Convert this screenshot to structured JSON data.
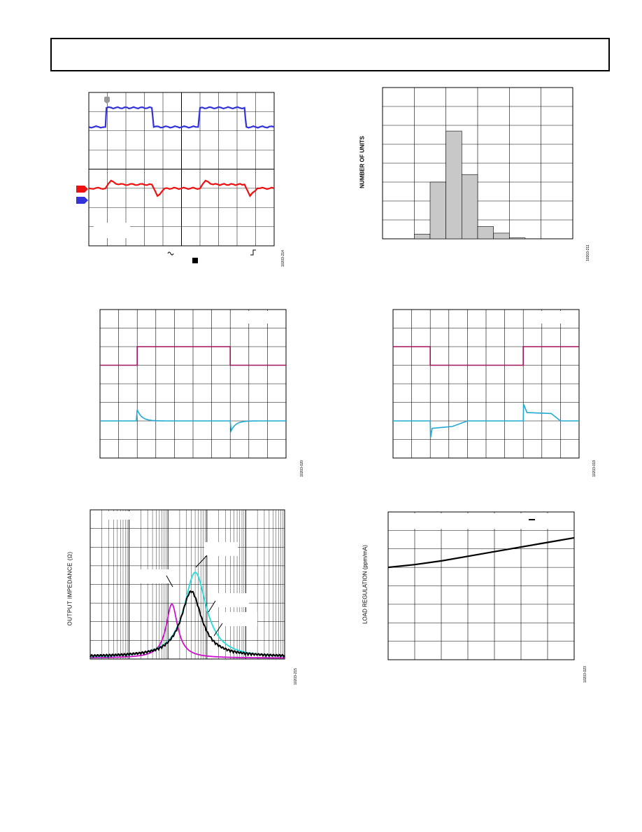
{
  "page": {
    "header_text": ""
  },
  "colors": {
    "blue": "#3333dd",
    "red": "#ee1111",
    "maroon": "#a0145a",
    "cyan": "#22aad4",
    "magenta": "#cc11cc",
    "aqua": "#22dddd",
    "gray_bar": "#c8c8c8"
  },
  "panels": {
    "scope": {
      "fig_id": "10203-214",
      "chart_data": {
        "type": "line",
        "divisions": {
          "x": 10,
          "y": 8
        },
        "series": [
          {
            "color": "blue",
            "points": [
              [
                0,
                6.2
              ],
              [
                0.9,
                6.2
              ],
              [
                0.95,
                7.2
              ],
              [
                3.4,
                7.2
              ],
              [
                3.5,
                6.2
              ],
              [
                5.9,
                6.2
              ],
              [
                6.0,
                7.2
              ],
              [
                8.4,
                7.2
              ],
              [
                8.5,
                6.2
              ],
              [
                10,
                6.2
              ]
            ]
          },
          {
            "color": "red",
            "points": [
              [
                0,
                3.0
              ],
              [
                0.9,
                3.0
              ],
              [
                1.2,
                3.4
              ],
              [
                1.6,
                3.2
              ],
              [
                3.4,
                3.2
              ],
              [
                3.7,
                2.6
              ],
              [
                4.1,
                3.0
              ],
              [
                6.0,
                3.0
              ],
              [
                6.3,
                3.4
              ],
              [
                6.7,
                3.2
              ],
              [
                8.4,
                3.2
              ],
              [
                8.7,
                2.6
              ],
              [
                9.1,
                3.0
              ],
              [
                10,
                3.0
              ]
            ]
          }
        ]
      }
    },
    "histogram": {
      "ylabel": "NUMBER OF UNITS",
      "fig_id": "10203-211",
      "chart_data": {
        "type": "bar",
        "grid": {
          "x": 6,
          "y": 8
        },
        "bins": {
          "start": 1,
          "width": 0.5
        },
        "values": [
          0.25,
          3,
          5.7,
          3.4,
          0.65,
          0.3,
          0.05
        ]
      }
    },
    "transient_up": {
      "fig_id": "10203-020",
      "chart_data": {
        "type": "line",
        "divisions": {
          "x": 10,
          "y": 8
        },
        "series": [
          {
            "color": "maroon",
            "kind": "step",
            "points": [
              [
                0,
                5.0
              ],
              [
                2,
                5.0
              ],
              [
                2,
                6.0
              ],
              [
                7,
                6.0
              ],
              [
                7,
                5.0
              ],
              [
                10,
                5.0
              ]
            ]
          },
          {
            "color": "cyan",
            "kind": "transient",
            "baseline": 2.0,
            "events": [
              [
                2,
                0.6
              ],
              [
                7,
                -0.65
              ]
            ]
          }
        ]
      }
    },
    "transient_down": {
      "fig_id": "10203-019",
      "chart_data": {
        "type": "line",
        "divisions": {
          "x": 10,
          "y": 8
        },
        "series": [
          {
            "color": "maroon",
            "kind": "step",
            "points": [
              [
                0,
                6.0
              ],
              [
                2,
                6.0
              ],
              [
                2,
                5.0
              ],
              [
                7,
                5.0
              ],
              [
                7,
                6.0
              ],
              [
                10,
                6.0
              ]
            ]
          },
          {
            "color": "cyan",
            "points": [
              [
                0,
                2.0
              ],
              [
                2,
                2.0
              ],
              [
                2.02,
                1.1
              ],
              [
                2.1,
                1.6
              ],
              [
                3.2,
                1.7
              ],
              [
                4.0,
                2.0
              ],
              [
                7,
                2.0
              ],
              [
                7.02,
                2.9
              ],
              [
                7.2,
                2.45
              ],
              [
                8.5,
                2.4
              ],
              [
                9.0,
                2.0
              ],
              [
                10,
                2.0
              ]
            ]
          }
        ]
      }
    },
    "impedance": {
      "ylabel": "OUTPUT IMPEDANCE (Ω)",
      "fig_id": "10203-215",
      "chart_data": {
        "type": "line",
        "x_decades": 5,
        "y_divisions": 8,
        "series": [
          {
            "color": "magenta",
            "peak_x": 2.1,
            "peak_y": 2.9,
            "width": 0.18
          },
          {
            "color": "aqua",
            "peak_x": 2.7,
            "peak_y": 4.6,
            "width": 0.35
          },
          {
            "color": "black",
            "peak_x": 2.6,
            "peak_y": 3.5,
            "width": 0.32
          }
        ]
      }
    },
    "load_reg": {
      "ylabel": "LOAD REGULATION (ppm/mA)",
      "fig_id": "10203-023",
      "chart_data": {
        "type": "line",
        "grid": {
          "x": 7,
          "y": 8
        },
        "series": [
          {
            "color": "black",
            "points": [
              [
                0,
                5.0
              ],
              [
                1,
                5.15
              ],
              [
                2,
                5.35
              ],
              [
                3,
                5.6
              ],
              [
                4,
                5.85
              ],
              [
                5,
                6.1
              ],
              [
                6,
                6.35
              ],
              [
                7,
                6.6
              ]
            ]
          }
        ]
      }
    }
  }
}
